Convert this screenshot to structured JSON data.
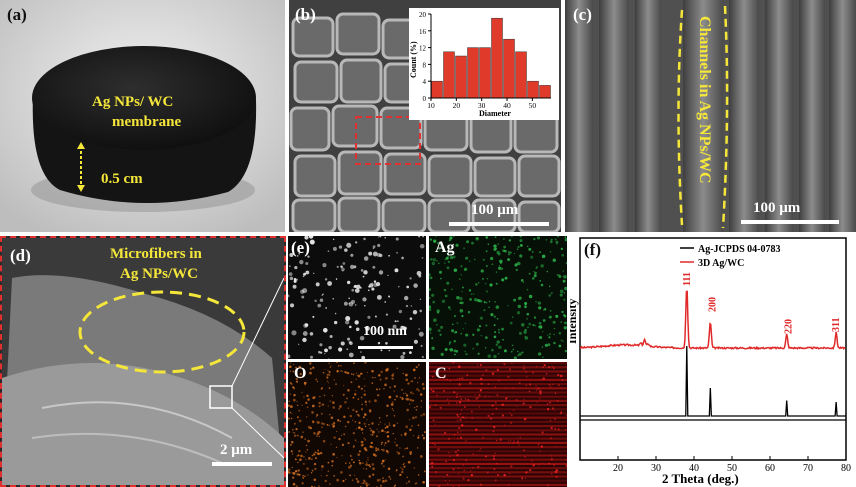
{
  "panels": {
    "a": {
      "label": "(a)",
      "annotation_line1": "Ag NPs/ WC",
      "annotation_line2": "membrane",
      "thickness": "0.5 cm"
    },
    "b": {
      "label": "(b)",
      "scale": "100 μm"
    },
    "c": {
      "label": "(c)",
      "annotation": "Channels in Ag NPs/WC",
      "scale": "100 μm"
    },
    "d": {
      "label": "(d)",
      "annotation_line1": "Microfibers in",
      "annotation_line2": "Ag NPs/WC",
      "scale": "2 μm"
    },
    "e": {
      "label": "(e)",
      "scale": "100 nm",
      "maps": [
        "Ag",
        "O",
        "C"
      ]
    },
    "f": {
      "label": "(f)"
    }
  },
  "colors": {
    "annotation_yellow": "#f5e63a",
    "dashed_red": "#e03030",
    "xrd_red": "#e02a2a",
    "xrd_black": "#000000",
    "ag_green": "#2aa845",
    "o_orange": "#c86a20",
    "c_red": "#c01818"
  },
  "chart_data": [
    {
      "type": "bar",
      "panel": "b",
      "xlabel": "Diameter",
      "ylabel": "Count (%)",
      "xlim": [
        10,
        55
      ],
      "ylim": [
        0,
        20
      ],
      "xticks": [
        10,
        20,
        30,
        40,
        50
      ],
      "yticks": [
        0,
        4,
        8,
        12,
        16,
        20
      ],
      "bin_centers": [
        12,
        17,
        22,
        27,
        32,
        37,
        42,
        47,
        52,
        57
      ],
      "values": [
        4,
        11,
        10,
        12,
        12,
        19,
        14,
        11,
        4,
        3
      ]
    },
    {
      "type": "line",
      "panel": "f",
      "xlabel": "2 Theta (deg.)",
      "ylabel": "Intensity",
      "xlim": [
        10,
        80
      ],
      "xticks": [
        10,
        20,
        30,
        40,
        50,
        60,
        70,
        80
      ],
      "legend": [
        "Ag-JCPDS 04-0783",
        "3D Ag/WC"
      ],
      "peaks": [
        {
          "label": "111",
          "x": 38.1
        },
        {
          "label": "200",
          "x": 44.3
        },
        {
          "label": "220",
          "x": 64.4
        },
        {
          "label": "311",
          "x": 77.4
        }
      ],
      "series": [
        {
          "name": "3D Ag/WC",
          "points": [
            [
              10,
              0.02
            ],
            [
              26,
              0.04
            ],
            [
              27,
              0.1
            ],
            [
              28,
              0.04
            ],
            [
              38.1,
              1.0
            ],
            [
              44.3,
              0.42
            ],
            [
              64.4,
              0.22
            ],
            [
              77.4,
              0.25
            ],
            [
              80,
              0.03
            ]
          ]
        },
        {
          "name": "Ag-JCPDS 04-0783",
          "points": [
            [
              38.1,
              1.0
            ],
            [
              44.3,
              0.4
            ],
            [
              64.4,
              0.22
            ],
            [
              77.4,
              0.2
            ]
          ]
        }
      ]
    }
  ]
}
